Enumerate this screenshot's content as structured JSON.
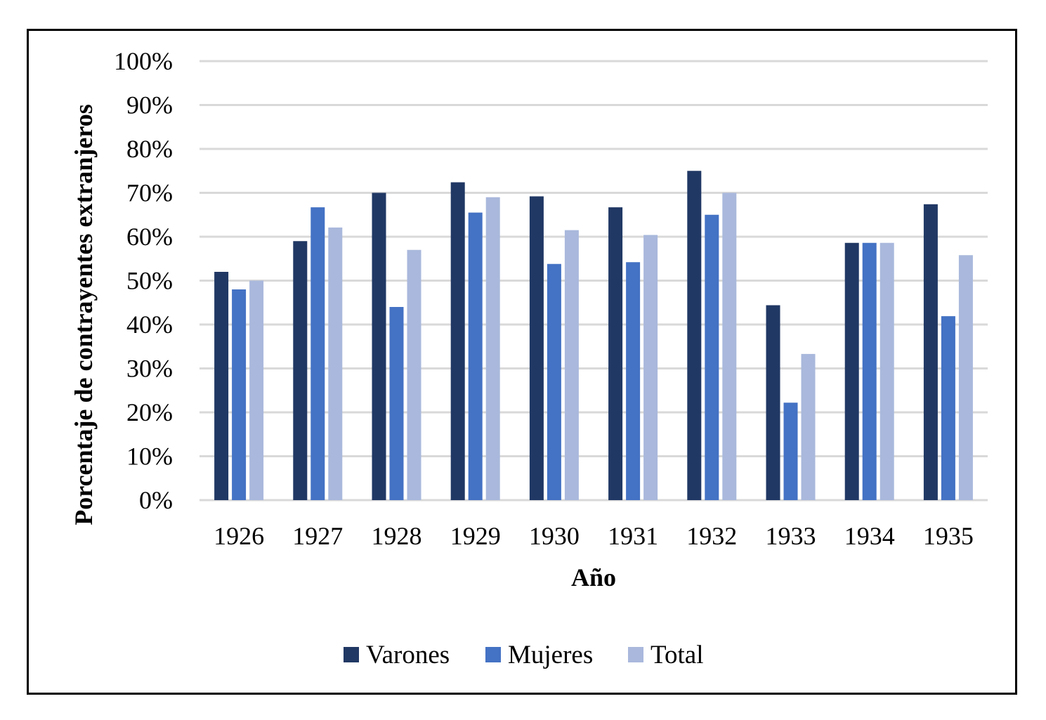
{
  "chart_data": {
    "type": "bar",
    "title": "",
    "xlabel": "Año",
    "ylabel": "Porcentaje de contrayentes extranjeros",
    "ylim": [
      0,
      100
    ],
    "y_ticks": [
      "0%",
      "10%",
      "20%",
      "30%",
      "40%",
      "50%",
      "60%",
      "70%",
      "80%",
      "90%",
      "100%"
    ],
    "y_tick_values": [
      0,
      10,
      20,
      30,
      40,
      50,
      60,
      70,
      80,
      90,
      100
    ],
    "grid": true,
    "legend_position": "bottom",
    "categories": [
      "1926",
      "1927",
      "1928",
      "1929",
      "1930",
      "1931",
      "1932",
      "1933",
      "1934",
      "1935"
    ],
    "series": [
      {
        "name": "Varones",
        "color": "#203864",
        "values": [
          52,
          59,
          70,
          72.4,
          69.2,
          66.7,
          75,
          44.4,
          58.6,
          67.4
        ]
      },
      {
        "name": "Mujeres",
        "color": "#4472C4",
        "values": [
          48,
          66.7,
          44,
          65.5,
          53.8,
          54.2,
          65,
          22.2,
          58.6,
          41.9
        ]
      },
      {
        "name": "Total",
        "color": "#A9B8DC",
        "values": [
          50,
          62.1,
          57,
          69,
          61.5,
          60.4,
          70,
          33.3,
          58.6,
          55.8
        ]
      }
    ]
  }
}
